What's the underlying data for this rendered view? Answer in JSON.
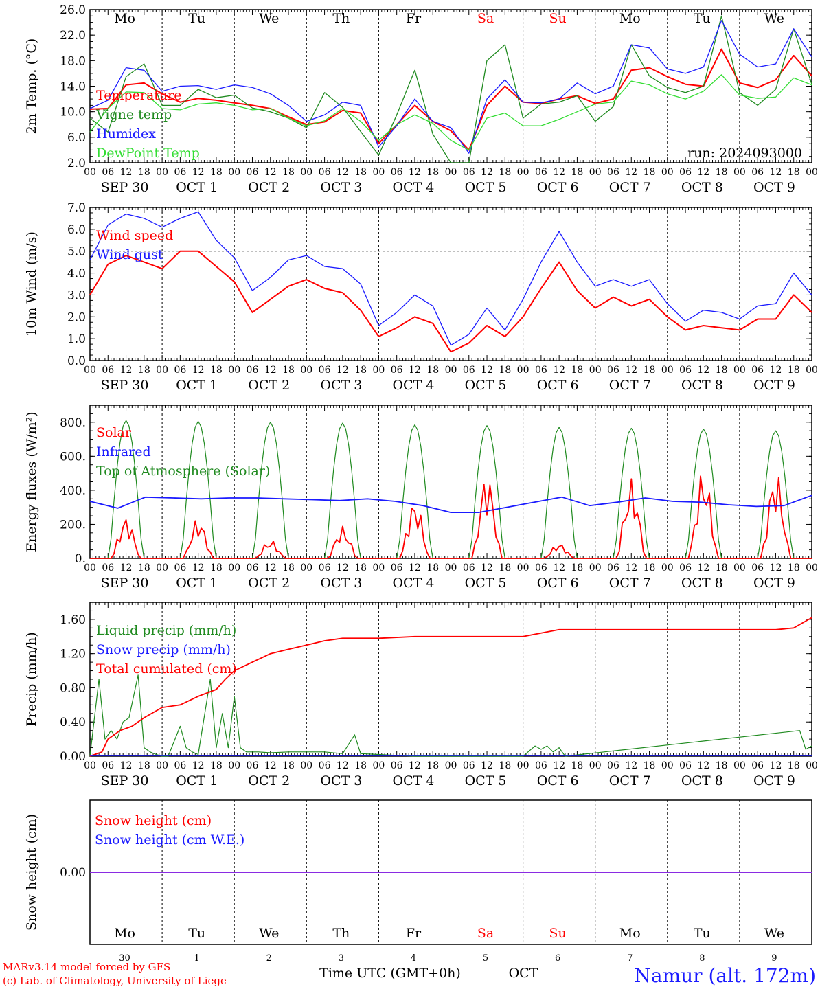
{
  "run_label": "run: 2024093000",
  "footer": {
    "credit1": "MARv3.14 model forced by GFS",
    "credit2": "(c) Lab. of Climatology, University of Liege",
    "xaxis_title": "Time UTC (GMT+0h)",
    "month": "OCT",
    "station": "Namur (alt. 172m)"
  },
  "days": [
    {
      "abbr": "Mo",
      "date": "SEP 30",
      "num": "30",
      "weekend": false
    },
    {
      "abbr": "Tu",
      "date": "OCT  1",
      "num": "1",
      "weekend": false
    },
    {
      "abbr": "We",
      "date": "OCT  2",
      "num": "2",
      "weekend": false
    },
    {
      "abbr": "Th",
      "date": "OCT  3",
      "num": "3",
      "weekend": false
    },
    {
      "abbr": "Fr",
      "date": "OCT  4",
      "num": "4",
      "weekend": false
    },
    {
      "abbr": "Sa",
      "date": "OCT  5",
      "num": "5",
      "weekend": true
    },
    {
      "abbr": "Su",
      "date": "OCT  6",
      "num": "6",
      "weekend": true
    },
    {
      "abbr": "Mo",
      "date": "OCT  7",
      "num": "7",
      "weekend": false
    },
    {
      "abbr": "Tu",
      "date": "OCT  8",
      "num": "8",
      "weekend": false
    },
    {
      "abbr": "We",
      "date": "OCT  9",
      "num": "9",
      "weekend": false
    }
  ],
  "hour_ticks": [
    "00",
    "06",
    "12",
    "18"
  ],
  "colors": {
    "red": "#ff0000",
    "green": "#1f8a1f",
    "blue": "#1a1aff",
    "lightgreen": "#33dd33",
    "weekend": "#ff0000",
    "purple": "#8a2be2"
  },
  "chart_data": [
    {
      "id": "temp",
      "type": "line",
      "ylabel": "2m Temp. (°C)",
      "ylim": [
        2,
        26
      ],
      "yticks": [
        "2.0",
        "6.0",
        "10.0",
        "14.0",
        "18.0",
        "22.0",
        "26.0"
      ],
      "x": [
        0,
        6,
        12,
        18,
        24,
        30,
        36,
        42,
        48,
        54,
        60,
        66,
        72,
        78,
        84,
        90,
        96,
        102,
        108,
        114,
        120,
        126,
        132,
        138,
        144,
        150,
        156,
        162,
        168,
        174,
        180,
        186,
        192,
        198,
        204,
        210,
        216,
        222,
        228,
        234,
        240
      ],
      "series": [
        {
          "name": "Temperature",
          "color": "red",
          "values": [
            10.4,
            10.5,
            14.2,
            14.5,
            12.8,
            11.5,
            12.1,
            11.8,
            11.4,
            11.0,
            10.5,
            9.2,
            8.0,
            8.4,
            10.2,
            9.8,
            5.0,
            8.0,
            11.0,
            8.5,
            7.0,
            4.0,
            11.0,
            14.0,
            11.5,
            11.3,
            12.0,
            12.5,
            11.3,
            12.0,
            16.5,
            16.9,
            15.5,
            14.3,
            14.0,
            19.8,
            14.5,
            13.8,
            15.0,
            18.8,
            15.6
          ]
        },
        {
          "name": "Vigne temp",
          "color": "green",
          "values": [
            9.0,
            6.8,
            15.5,
            17.5,
            11.0,
            11.0,
            13.5,
            12.2,
            12.6,
            10.6,
            10.0,
            9.0,
            7.5,
            13.0,
            10.7,
            6.9,
            3.2,
            9.5,
            16.5,
            6.5,
            2.0,
            2.0,
            18.0,
            20.5,
            9.0,
            11.2,
            11.5,
            12.5,
            8.5,
            10.8,
            20.5,
            15.6,
            13.8,
            13.0,
            14.0,
            25.0,
            13.0,
            11.0,
            13.5,
            23.0,
            14.3
          ]
        },
        {
          "name": "Humidex",
          "color": "blue",
          "values": [
            10.5,
            11.8,
            16.9,
            16.5,
            13.2,
            14.0,
            14.1,
            13.5,
            14.2,
            13.8,
            12.8,
            11.0,
            8.5,
            9.5,
            11.5,
            11.0,
            4.5,
            7.8,
            12.0,
            8.5,
            7.5,
            3.5,
            12.0,
            15.0,
            11.5,
            11.4,
            12.0,
            14.5,
            12.8,
            14.0,
            20.5,
            20.0,
            16.7,
            16.0,
            17.0,
            24.3,
            19.0,
            17.0,
            17.5,
            23.0,
            18.6
          ]
        },
        {
          "name": "DewPoint Temp",
          "color": "lightgreen",
          "values": [
            6.8,
            10.5,
            13.1,
            13.0,
            10.5,
            10.3,
            11.2,
            11.4,
            11.0,
            10.3,
            10.5,
            9.0,
            7.8,
            8.6,
            10.5,
            8.5,
            5.5,
            8.0,
            9.5,
            8.2,
            5.5,
            4.0,
            9.0,
            9.8,
            7.8,
            7.8,
            8.8,
            10.0,
            11.2,
            11.5,
            14.8,
            14.2,
            12.8,
            12.0,
            13.2,
            15.8,
            12.6,
            12.1,
            12.3,
            15.3,
            14.2
          ]
        }
      ]
    },
    {
      "id": "wind",
      "type": "line",
      "ylabel": "10m Wind (m/s)",
      "ylim": [
        0,
        7
      ],
      "yticks": [
        "0.0",
        "1.0",
        "2.0",
        "3.0",
        "4.0",
        "5.0",
        "6.0",
        "7.0"
      ],
      "dashed_level": 5,
      "x": [
        0,
        6,
        12,
        18,
        24,
        30,
        36,
        42,
        48,
        54,
        60,
        66,
        72,
        78,
        84,
        90,
        96,
        102,
        108,
        114,
        120,
        126,
        132,
        138,
        144,
        150,
        156,
        162,
        168,
        174,
        180,
        186,
        192,
        198,
        204,
        210,
        216,
        222,
        228,
        234,
        240
      ],
      "series": [
        {
          "name": "Wind speed",
          "color": "red",
          "values": [
            3.0,
            4.4,
            4.8,
            4.5,
            4.2,
            5.0,
            5.0,
            4.3,
            3.6,
            2.2,
            2.8,
            3.4,
            3.7,
            3.3,
            3.1,
            2.3,
            1.1,
            1.5,
            2.0,
            1.7,
            0.4,
            0.8,
            1.6,
            1.1,
            2.0,
            3.3,
            4.5,
            3.2,
            2.4,
            2.9,
            2.5,
            2.8,
            2.0,
            1.4,
            1.6,
            1.5,
            1.4,
            1.9,
            1.9,
            3.0,
            2.2
          ]
        },
        {
          "name": "Wind gust",
          "color": "blue",
          "values": [
            4.6,
            6.2,
            6.7,
            6.5,
            6.1,
            6.5,
            6.8,
            5.5,
            4.7,
            3.2,
            3.8,
            4.6,
            4.8,
            4.3,
            4.2,
            3.5,
            1.6,
            2.2,
            3.0,
            2.5,
            0.7,
            1.2,
            2.4,
            1.4,
            2.8,
            4.5,
            5.9,
            4.5,
            3.4,
            3.7,
            3.4,
            3.7,
            2.6,
            1.8,
            2.3,
            2.2,
            1.9,
            2.5,
            2.6,
            4.0,
            3.0
          ]
        }
      ]
    },
    {
      "id": "energy",
      "type": "line",
      "ylabel": "Energy fluxes (W/m²)",
      "ylim": [
        0,
        900
      ],
      "yticks": [
        "0.",
        "200.",
        "400.",
        "600.",
        "800."
      ],
      "ytick_values": [
        0,
        200,
        400,
        600,
        800
      ],
      "series": [
        {
          "name": "Solar",
          "color": "red",
          "daily_peaks": [
            250,
            240,
            110,
            190,
            350,
            510,
            90,
            470,
            530,
            520
          ],
          "style": "diurnal"
        },
        {
          "name": "Infrared",
          "color": "blue",
          "values": [
            335,
            295,
            360,
            355,
            350,
            355,
            355,
            350,
            345,
            340,
            350,
            335,
            310,
            270,
            270,
            300,
            330,
            360,
            310,
            330,
            355,
            335,
            330,
            315,
            305,
            310,
            370
          ]
        },
        {
          "name": "Top of Atmosphere (Solar)",
          "color": "green",
          "daily_peaks": [
            810,
            805,
            800,
            795,
            785,
            780,
            770,
            765,
            760,
            750
          ],
          "style": "toa"
        }
      ]
    },
    {
      "id": "precip",
      "type": "line",
      "ylabel": "Precip (mm/h)",
      "ylim": [
        0,
        1.8
      ],
      "yticks": [
        "0.00",
        "0.40",
        "0.80",
        "1.20",
        "1.60"
      ],
      "ytick_values": [
        0,
        0.4,
        0.8,
        1.2,
        1.6
      ],
      "series": [
        {
          "name": "Liquid precip (mm/h)",
          "color": "green",
          "x": [
            0,
            3,
            5,
            7,
            9,
            11,
            13,
            16,
            18,
            20,
            22,
            24,
            26,
            30,
            32,
            34,
            36,
            40,
            42,
            44,
            46,
            48,
            50,
            52,
            54,
            56,
            60,
            66,
            72,
            78,
            84,
            88,
            90,
            96,
            102,
            108,
            144,
            148,
            150,
            152,
            154,
            156,
            158,
            236,
            238,
            240
          ],
          "values": [
            0,
            0.9,
            0.2,
            0.3,
            0.2,
            0.4,
            0.45,
            0.95,
            0.1,
            0.05,
            0.02,
            0,
            0,
            0.35,
            0.1,
            0.05,
            0.02,
            0.9,
            0.1,
            0.5,
            0.1,
            0.7,
            0.1,
            0.05,
            0.05,
            0.05,
            0.04,
            0.05,
            0.05,
            0.05,
            0.03,
            0.25,
            0.03,
            0.02,
            0.01,
            0,
            0,
            0.12,
            0.08,
            0.12,
            0.05,
            0.1,
            0,
            0.3,
            0.08,
            0.12
          ]
        },
        {
          "name": "Snow precip (mm/h)",
          "color": "blue",
          "values": []
        },
        {
          "name": "Total cumulated (cm)",
          "color": "red",
          "x": [
            0,
            4,
            6,
            10,
            14,
            18,
            24,
            30,
            36,
            42,
            45,
            48,
            54,
            60,
            66,
            72,
            78,
            84,
            96,
            108,
            120,
            144,
            156,
            180,
            204,
            228,
            234,
            240
          ],
          "values": [
            0,
            0.05,
            0.2,
            0.3,
            0.35,
            0.45,
            0.57,
            0.6,
            0.7,
            0.78,
            0.9,
            1.0,
            1.1,
            1.2,
            1.25,
            1.3,
            1.35,
            1.38,
            1.38,
            1.4,
            1.4,
            1.4,
            1.48,
            1.48,
            1.48,
            1.48,
            1.5,
            1.62
          ]
        }
      ]
    },
    {
      "id": "snow",
      "type": "line",
      "ylabel": "Snow height (cm)",
      "yticks": [
        "0.00"
      ],
      "series": [
        {
          "name": "Snow height (cm)",
          "color": "red",
          "values": [
            0,
            0
          ]
        },
        {
          "name": "Snow height (cm W.E.)",
          "color": "blue",
          "values": [
            0,
            0
          ]
        }
      ]
    }
  ]
}
